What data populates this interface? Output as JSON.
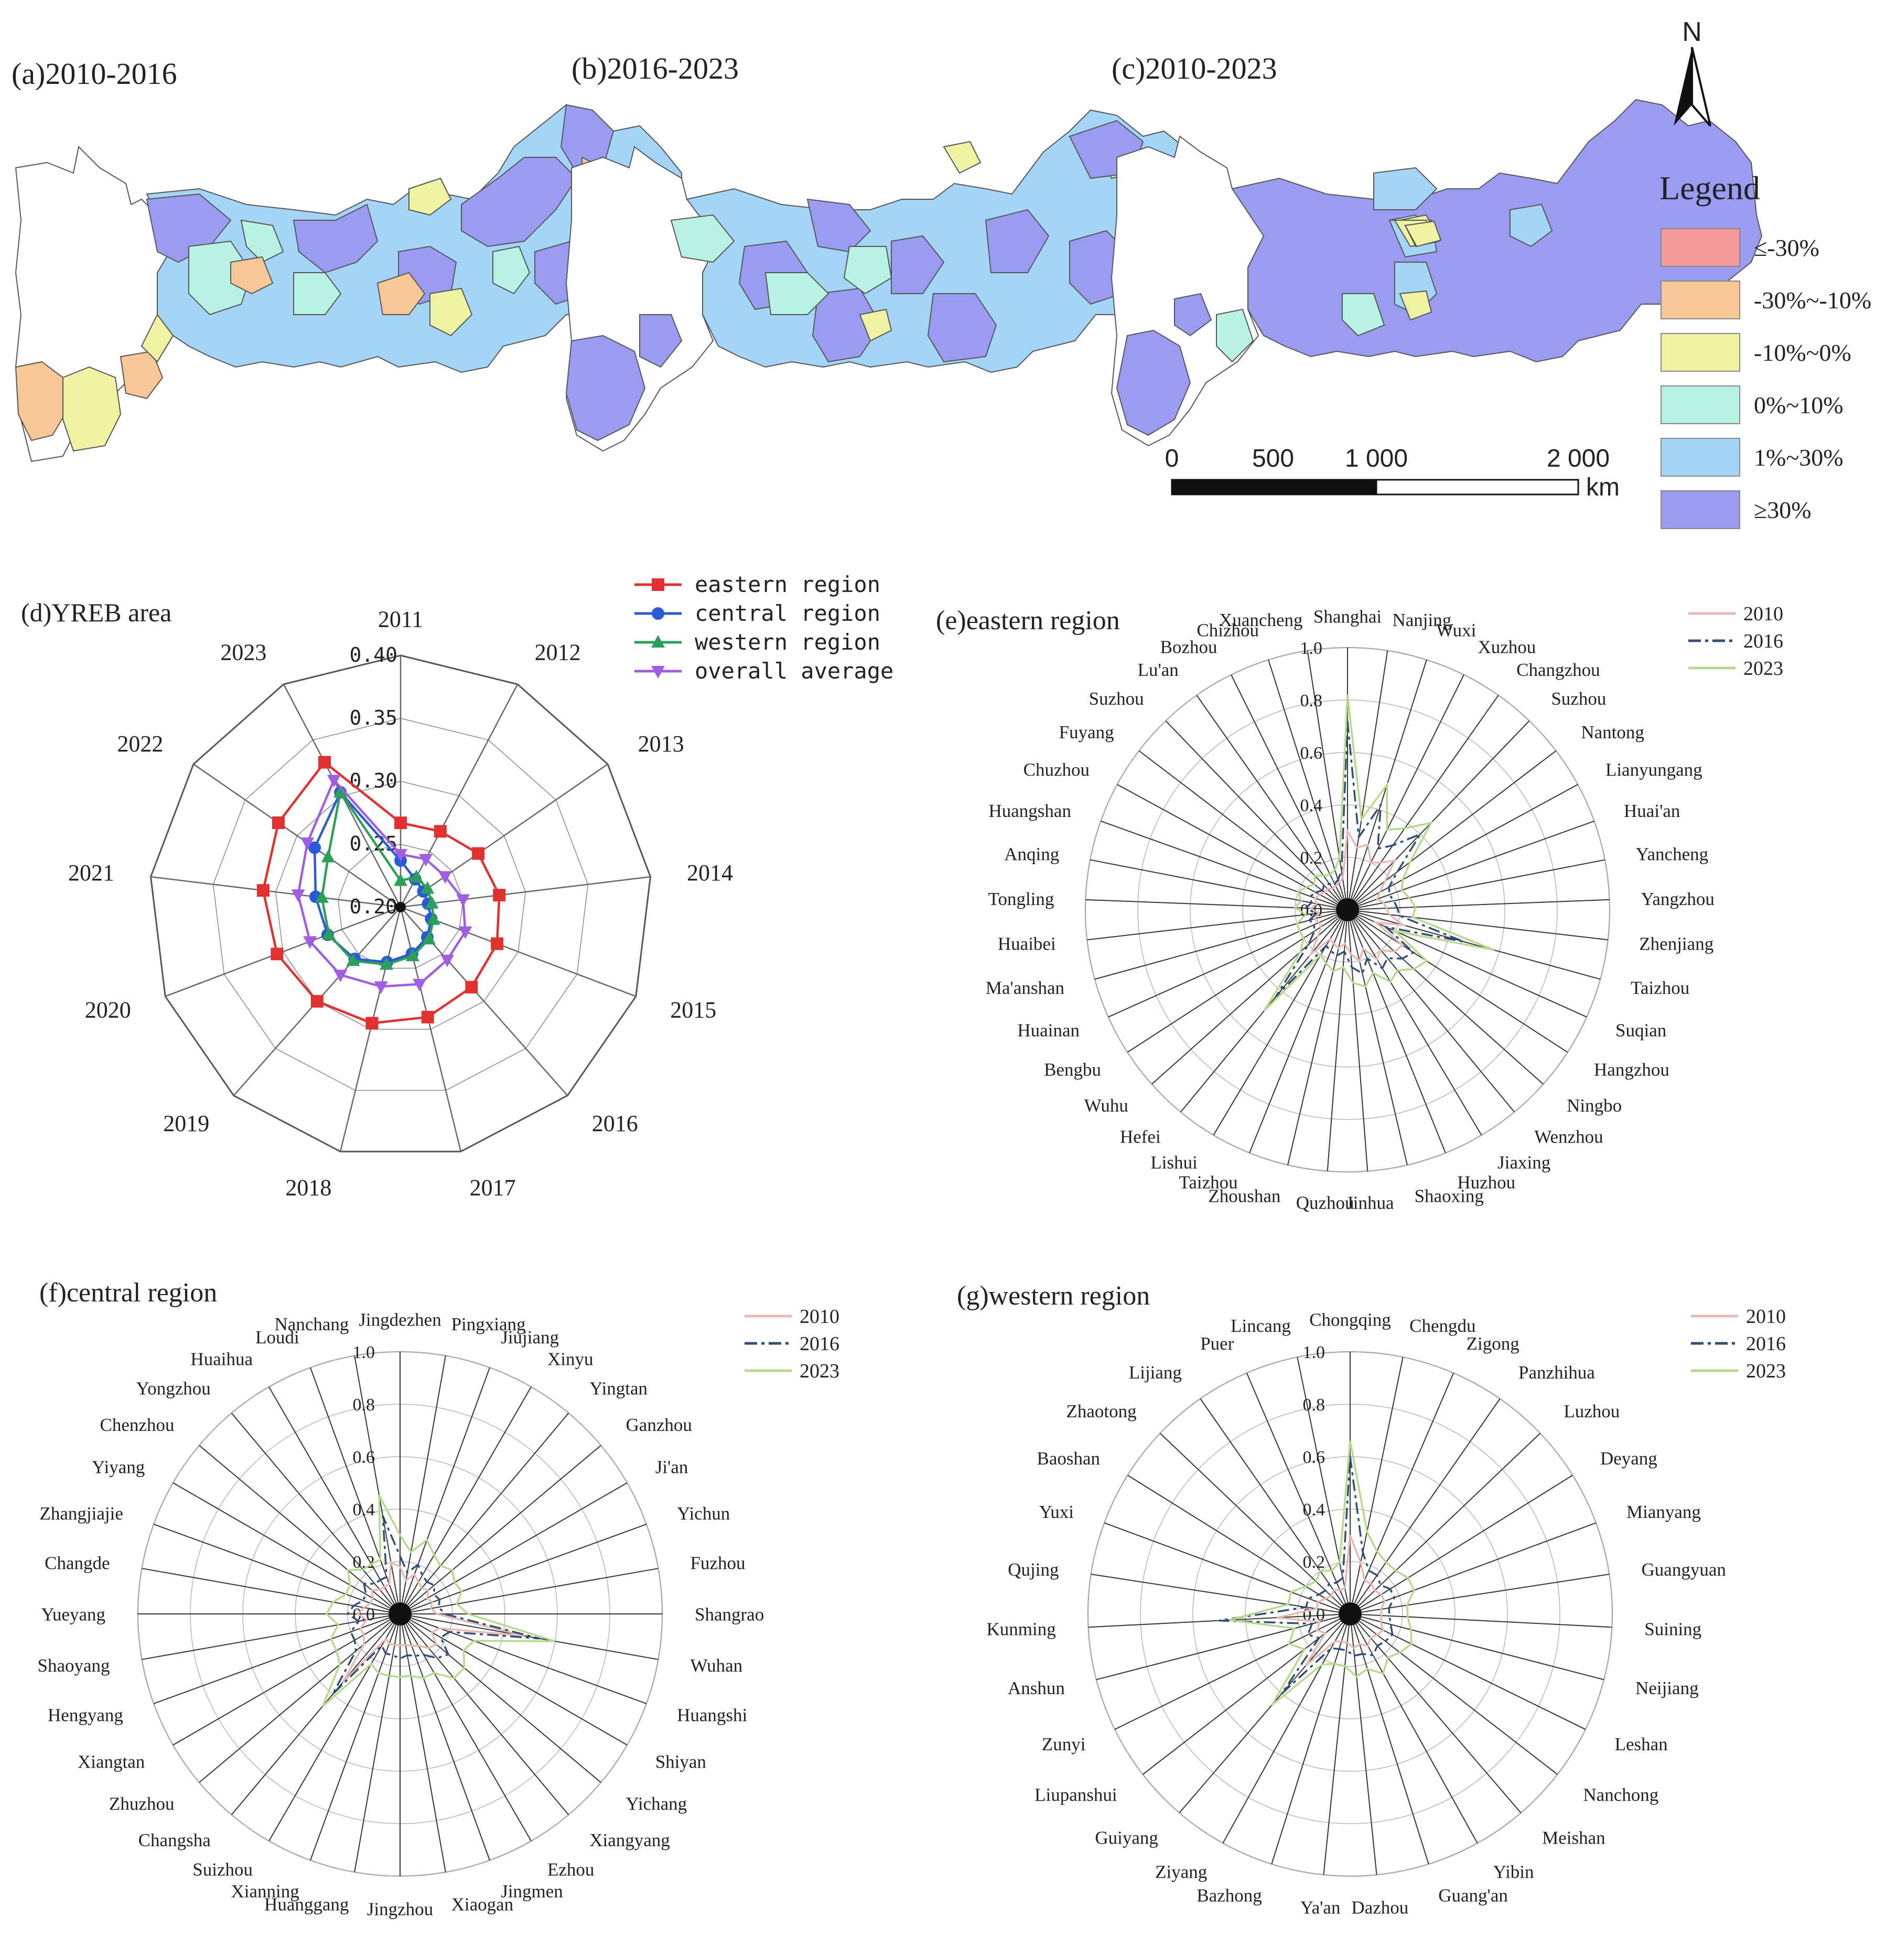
{
  "maps": {
    "panels": [
      {
        "label": "(a)2010-2016"
      },
      {
        "label": "(b)2016-2023"
      },
      {
        "label": "(c)2010-2023"
      }
    ],
    "north_label": "N",
    "legend_title": "Legend",
    "legend": [
      {
        "label": "≤-30%",
        "color": "#f49a9a"
      },
      {
        "label": "-30%~-10%",
        "color": "#f7c896"
      },
      {
        "label": "-10%~0%",
        "color": "#eef2a2"
      },
      {
        "label": "0%~10%",
        "color": "#b8f2e2"
      },
      {
        "label": "1%~30%",
        "color": "#a4d4f6"
      },
      {
        "label": "≥30%",
        "color": "#9a9cf2"
      }
    ],
    "scale_bar": {
      "ticks": [
        "0",
        "500",
        "1 000",
        "2 000"
      ],
      "unit": "km"
    }
  },
  "chart_data": [
    {
      "type": "radar",
      "id": "d",
      "title": "(d)YREB area",
      "axes": [
        "2011",
        "2012",
        "2013",
        "2014",
        "2015",
        "2016",
        "2017",
        "2018",
        "2019",
        "2020",
        "2021",
        "2022",
        "2023"
      ],
      "range": [
        0.2,
        0.4
      ],
      "ticks": [
        "0.20",
        "0.25",
        "0.30",
        "0.35",
        "0.40"
      ],
      "series": [
        {
          "name": "eastern region",
          "color": "#e0312f",
          "marker": "square",
          "values": [
            0.267,
            0.268,
            0.275,
            0.279,
            0.282,
            0.285,
            0.29,
            0.295,
            0.3,
            0.305,
            0.31,
            0.318,
            0.33
          ]
        },
        {
          "name": "central region",
          "color": "#2a5bd7",
          "marker": "circle",
          "values": [
            0.237,
            0.225,
            0.222,
            0.222,
            0.226,
            0.232,
            0.238,
            0.245,
            0.255,
            0.262,
            0.268,
            0.283,
            0.303
          ]
        },
        {
          "name": "western region",
          "color": "#2e9e5b",
          "marker": "triangle",
          "values": [
            0.221,
            0.227,
            0.226,
            0.225,
            0.228,
            0.234,
            0.24,
            0.247,
            0.257,
            0.261,
            0.263,
            0.27,
            0.303
          ]
        },
        {
          "name": "overall average",
          "color": "#a05ee2",
          "marker": "triangle-down",
          "values": [
            0.242,
            0.243,
            0.243,
            0.25,
            0.255,
            0.256,
            0.263,
            0.265,
            0.272,
            0.277,
            0.282,
            0.29,
            0.314
          ]
        }
      ]
    },
    {
      "type": "radar",
      "id": "e",
      "title": "(e)eastern region",
      "axes": [
        "Shanghai",
        "Nanjing",
        "Wuxi",
        "Xuzhou",
        "Changzhou",
        "Suzhou",
        "Nantong",
        "Lianyungang",
        "Huai'an",
        "Yancheng",
        "Yangzhou",
        "Zhenjiang",
        "Taizhou",
        "Suqian",
        "Hangzhou",
        "Ningbo",
        "Wenzhou",
        "Jiaxing",
        "Huzhou",
        "Shaoxing",
        "Jinhua",
        "Quzhou",
        "Zhoushan",
        "Taizhou",
        "Lishui",
        "Hefei",
        "Wuhu",
        "Bengbu",
        "Huainan",
        "Ma'anshan",
        "Huaibei",
        "Tongling",
        "Anqing",
        "Huangshan",
        "Chuzhou",
        "Fuyang",
        "Suzhou",
        "Lu'an",
        "Bozhou",
        "Chizhou",
        "Xuancheng"
      ],
      "range": [
        0.0,
        1.0
      ],
      "ticks": [
        "0.0",
        "0.2",
        "0.4",
        "0.6",
        "0.8",
        "1.0"
      ],
      "series": [
        {
          "name": "2010",
          "color": "#e6b8b4",
          "dash": "",
          "values": [
            0.3,
            0.24,
            0.26,
            0.2,
            0.22,
            0.26,
            0.18,
            0.14,
            0.12,
            0.14,
            0.15,
            0.16,
            0.22,
            0.12,
            0.25,
            0.24,
            0.2,
            0.22,
            0.16,
            0.2,
            0.17,
            0.13,
            0.15,
            0.14,
            0.13,
            0.22,
            0.15,
            0.12,
            0.12,
            0.13,
            0.11,
            0.14,
            0.12,
            0.13,
            0.12,
            0.11,
            0.11,
            0.1,
            0.1,
            0.11,
            0.12
          ]
        },
        {
          "name": "2016",
          "color": "#2f4f7a",
          "dash": "22 8 6 8",
          "values": [
            0.72,
            0.28,
            0.42,
            0.26,
            0.3,
            0.4,
            0.24,
            0.18,
            0.17,
            0.18,
            0.19,
            0.2,
            0.46,
            0.16,
            0.3,
            0.28,
            0.24,
            0.26,
            0.2,
            0.25,
            0.22,
            0.16,
            0.18,
            0.17,
            0.16,
            0.43,
            0.2,
            0.15,
            0.14,
            0.15,
            0.12,
            0.16,
            0.14,
            0.15,
            0.14,
            0.12,
            0.13,
            0.12,
            0.11,
            0.12,
            0.15
          ]
        },
        {
          "name": "2023",
          "color": "#b5d88a",
          "dash": "",
          "values": [
            0.82,
            0.35,
            0.5,
            0.34,
            0.38,
            0.46,
            0.3,
            0.24,
            0.22,
            0.24,
            0.26,
            0.25,
            0.58,
            0.2,
            0.36,
            0.34,
            0.3,
            0.32,
            0.26,
            0.3,
            0.28,
            0.22,
            0.24,
            0.22,
            0.2,
            0.5,
            0.24,
            0.2,
            0.2,
            0.2,
            0.16,
            0.2,
            0.18,
            0.2,
            0.18,
            0.16,
            0.18,
            0.16,
            0.15,
            0.16,
            0.2
          ]
        }
      ]
    },
    {
      "type": "radar",
      "id": "f",
      "title": "(f)central region",
      "axes": [
        "Jingdezhen",
        "Pingxiang",
        "Jiujiang",
        "Xinyu",
        "Yingtan",
        "Ganzhou",
        "Ji'an",
        "Yichun",
        "Fuzhou",
        "Shangrao",
        "Wuhan",
        "Huangshi",
        "Shiyan",
        "Yichang",
        "Xiangyang",
        "Ezhou",
        "Jingmen",
        "Xiaogan",
        "Jingzhou",
        "Huanggang",
        "Xianning",
        "Suizhou",
        "Changsha",
        "Zhuzhou",
        "Xiangtan",
        "Hengyang",
        "Shaoyang",
        "Yueyang",
        "Changde",
        "Zhangjiajie",
        "Yiyang",
        "Chenzhou",
        "Yongzhou",
        "Huaihua",
        "Loudi",
        "Nanchang"
      ],
      "range": [
        0.0,
        1.0
      ],
      "ticks": [
        "0.0",
        "0.2",
        "0.4",
        "0.6",
        "0.8",
        "1.0"
      ],
      "series": [
        {
          "name": "2010",
          "color": "#e6b8b4",
          "dash": "",
          "values": [
            0.18,
            0.13,
            0.16,
            0.14,
            0.13,
            0.14,
            0.12,
            0.13,
            0.12,
            0.14,
            0.48,
            0.16,
            0.14,
            0.18,
            0.17,
            0.14,
            0.13,
            0.12,
            0.12,
            0.12,
            0.12,
            0.11,
            0.34,
            0.18,
            0.16,
            0.16,
            0.13,
            0.16,
            0.14,
            0.12,
            0.12,
            0.14,
            0.12,
            0.12,
            0.12,
            0.2
          ]
        },
        {
          "name": "2016",
          "color": "#2f4f7a",
          "dash": "22 8 6 8",
          "values": [
            0.22,
            0.16,
            0.2,
            0.17,
            0.16,
            0.17,
            0.15,
            0.16,
            0.15,
            0.17,
            0.54,
            0.2,
            0.18,
            0.24,
            0.22,
            0.18,
            0.17,
            0.16,
            0.17,
            0.16,
            0.16,
            0.14,
            0.4,
            0.22,
            0.2,
            0.2,
            0.16,
            0.2,
            0.18,
            0.15,
            0.15,
            0.18,
            0.15,
            0.15,
            0.15,
            0.38
          ]
        },
        {
          "name": "2023",
          "color": "#b5d88a",
          "dash": "",
          "values": [
            0.3,
            0.24,
            0.3,
            0.26,
            0.24,
            0.26,
            0.24,
            0.25,
            0.22,
            0.26,
            0.6,
            0.3,
            0.28,
            0.32,
            0.32,
            0.26,
            0.26,
            0.24,
            0.24,
            0.24,
            0.24,
            0.22,
            0.46,
            0.3,
            0.28,
            0.28,
            0.24,
            0.28,
            0.26,
            0.22,
            0.22,
            0.26,
            0.22,
            0.22,
            0.22,
            0.46
          ]
        }
      ]
    },
    {
      "type": "radar",
      "id": "g",
      "title": "(g)western region",
      "axes": [
        "Chongqing",
        "Chengdu",
        "Zigong",
        "Panzhihua",
        "Luzhou",
        "Deyang",
        "Mianyang",
        "Guangyuan",
        "Suining",
        "Neijiang",
        "Leshan",
        "Nanchong",
        "Meishan",
        "Yibin",
        "Guang'an",
        "Dazhou",
        "Ya'an",
        "Bazhong",
        "Ziyang",
        "Guiyang",
        "Liupanshui",
        "Zunyi",
        "Anshun",
        "Kunming",
        "Qujing",
        "Yuxi",
        "Baoshan",
        "Zhaotong",
        "Lijiang",
        "Puer",
        "Lincang"
      ],
      "range": [
        0.0,
        1.0
      ],
      "ticks": [
        "0.0",
        "0.2",
        "0.4",
        "0.6",
        "0.8",
        "1.0"
      ],
      "series": [
        {
          "name": "2010",
          "color": "#e6b8b4",
          "dash": "",
          "values": [
            0.3,
            0.2,
            0.14,
            0.14,
            0.13,
            0.14,
            0.14,
            0.12,
            0.12,
            0.12,
            0.14,
            0.13,
            0.12,
            0.14,
            0.12,
            0.13,
            0.11,
            0.11,
            0.12,
            0.26,
            0.12,
            0.14,
            0.12,
            0.28,
            0.13,
            0.13,
            0.11,
            0.1,
            0.11,
            0.1,
            0.1
          ]
        },
        {
          "name": "2016",
          "color": "#2f4f7a",
          "dash": "22 8 6 8",
          "values": [
            0.6,
            0.24,
            0.18,
            0.18,
            0.16,
            0.18,
            0.18,
            0.15,
            0.15,
            0.16,
            0.18,
            0.17,
            0.16,
            0.18,
            0.16,
            0.16,
            0.14,
            0.14,
            0.15,
            0.4,
            0.15,
            0.18,
            0.15,
            0.5,
            0.17,
            0.17,
            0.14,
            0.13,
            0.14,
            0.13,
            0.14
          ]
        },
        {
          "name": "2023",
          "color": "#b5d88a",
          "dash": "",
          "values": [
            0.66,
            0.32,
            0.26,
            0.24,
            0.24,
            0.26,
            0.26,
            0.22,
            0.22,
            0.24,
            0.26,
            0.24,
            0.22,
            0.26,
            0.22,
            0.24,
            0.2,
            0.2,
            0.22,
            0.46,
            0.22,
            0.26,
            0.22,
            0.46,
            0.24,
            0.24,
            0.2,
            0.18,
            0.2,
            0.18,
            0.2
          ]
        }
      ]
    }
  ]
}
